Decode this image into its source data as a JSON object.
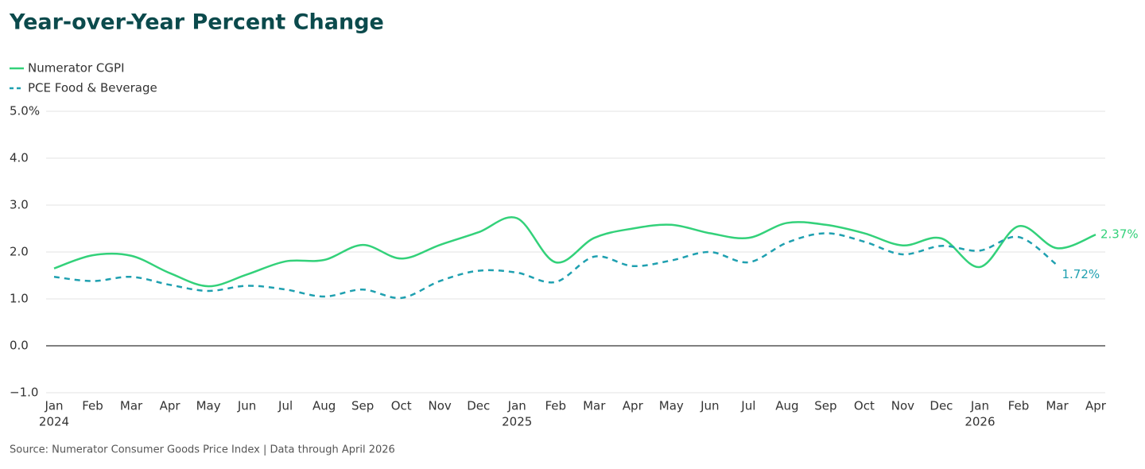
{
  "chart_data": {
    "type": "line",
    "title": "Year-over-Year Percent Change",
    "source": "Source: Numerator Consumer Goods Price Index | Data through April 2026",
    "categories": [
      [
        "Jan",
        "2024"
      ],
      "Feb",
      "Mar",
      "Apr",
      "May",
      "Jun",
      "Jul",
      "Aug",
      "Sep",
      "Oct",
      "Nov",
      "Dec",
      [
        "Jan",
        "2025"
      ],
      "Feb",
      "Mar",
      "Apr",
      "May",
      "Jun",
      "Jul",
      "Aug",
      "Sep",
      "Oct",
      "Nov",
      "Dec",
      [
        "Jan",
        "2026"
      ],
      "Feb",
      "Mar",
      "Apr"
    ],
    "series": [
      {
        "name": "Numerator CGPI",
        "color": "#33d17a",
        "dash": false,
        "values": [
          1.65,
          1.93,
          1.92,
          1.55,
          1.27,
          1.52,
          1.8,
          1.83,
          2.15,
          1.86,
          2.15,
          2.42,
          2.72,
          1.78,
          2.3,
          2.5,
          2.58,
          2.4,
          2.3,
          2.62,
          2.58,
          2.4,
          2.14,
          2.29,
          1.68,
          2.55,
          2.08,
          2.37
        ],
        "value_labels": [
          null,
          null,
          null,
          null,
          null,
          null,
          null,
          null,
          null,
          null,
          null,
          null,
          null,
          null,
          null,
          null,
          null,
          null,
          null,
          null,
          null,
          null,
          null,
          null,
          null,
          null,
          null,
          "2.37%"
        ]
      },
      {
        "name": "PCE Food & Beverage",
        "color": "#1fa0b0",
        "dash": true,
        "values": [
          1.47,
          1.38,
          1.47,
          1.3,
          1.17,
          1.28,
          1.2,
          1.05,
          1.2,
          1.02,
          1.38,
          1.6,
          1.56,
          1.36,
          1.9,
          1.7,
          1.82,
          2.0,
          1.78,
          2.2,
          2.4,
          2.22,
          1.95,
          2.13,
          2.03,
          2.32,
          1.72,
          null
        ],
        "value_labels": [
          null,
          null,
          null,
          null,
          null,
          null,
          null,
          null,
          null,
          null,
          null,
          null,
          null,
          null,
          null,
          null,
          null,
          null,
          null,
          null,
          null,
          null,
          null,
          null,
          null,
          null,
          "1.72%",
          null
        ]
      }
    ],
    "ylim": [
      -1,
      5
    ],
    "yticks": [
      {
        "value": -1,
        "label": "−1.0"
      },
      {
        "value": 0,
        "label": "0.0"
      },
      {
        "value": 1,
        "label": "1.0"
      },
      {
        "value": 2,
        "label": "2.0"
      },
      {
        "value": 3,
        "label": "3.0"
      },
      {
        "value": 4,
        "label": "4.0"
      },
      {
        "value": 5,
        "label": "5.0%"
      }
    ],
    "grid": true,
    "legend": "top-left"
  }
}
